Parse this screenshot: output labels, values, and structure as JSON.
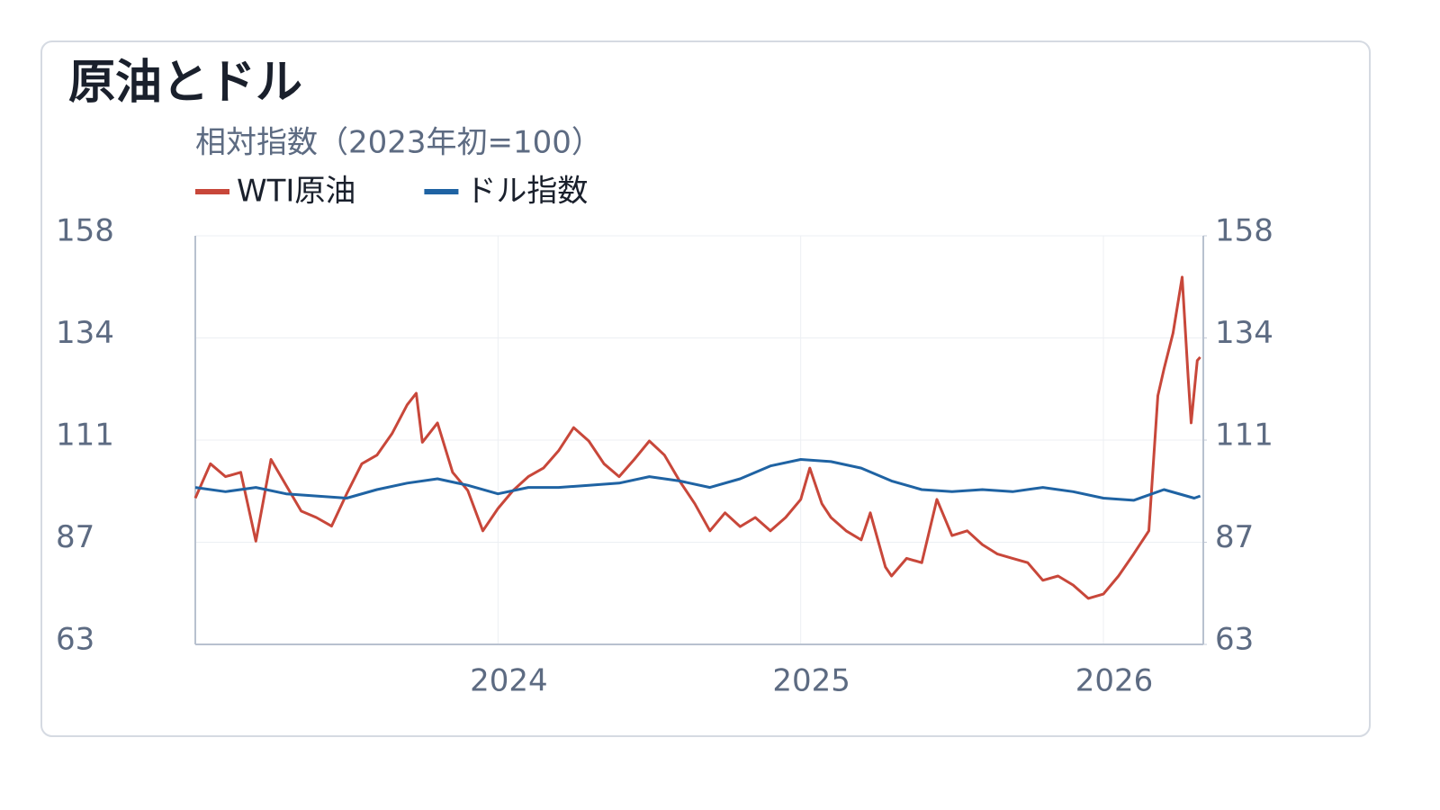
{
  "chart_data": {
    "type": "line",
    "title": "原油とドル",
    "subtitle": "相対指数（2023年初=100）",
    "xlim": [
      2023,
      2026.33
    ],
    "xticks": [
      2024,
      2025,
      2026
    ],
    "ylim": [
      63,
      158
    ],
    "yticks": [
      63,
      {
        "value": 86.75,
        "label": "87"
      },
      {
        "value": 110.5,
        "label": "111"
      },
      {
        "value": 134.25,
        "label": "134"
      },
      158
    ],
    "y2lim": [
      63,
      158
    ],
    "y2ticks": [
      63,
      {
        "value": 86.75,
        "label": "87"
      },
      {
        "value": 110.5,
        "label": "111"
      },
      {
        "value": 134.25,
        "label": "134"
      },
      158
    ],
    "grid": true,
    "series": [
      {
        "name": "WTI原油",
        "color": "#c8473a",
        "x": [
          2023.0,
          2023.05,
          2023.1,
          2023.15,
          2023.2,
          2023.25,
          2023.3,
          2023.35,
          2023.4,
          2023.45,
          2023.5,
          2023.55,
          2023.6,
          2023.65,
          2023.7,
          2023.73,
          2023.75,
          2023.8,
          2023.85,
          2023.9,
          2023.95,
          2024.0,
          2024.05,
          2024.1,
          2024.15,
          2024.2,
          2024.25,
          2024.3,
          2024.35,
          2024.4,
          2024.45,
          2024.5,
          2024.55,
          2024.6,
          2024.65,
          2024.7,
          2024.75,
          2024.8,
          2024.85,
          2024.9,
          2024.95,
          2025.0,
          2025.03,
          2025.07,
          2025.1,
          2025.15,
          2025.2,
          2025.23,
          2025.28,
          2025.3,
          2025.35,
          2025.4,
          2025.45,
          2025.5,
          2025.55,
          2025.6,
          2025.65,
          2025.7,
          2025.75,
          2025.8,
          2025.85,
          2025.9,
          2025.95,
          2026.0,
          2026.05,
          2026.1,
          2026.15,
          2026.18,
          2026.2,
          2026.23,
          2026.26,
          2026.28,
          2026.29,
          2026.31,
          2026.32
        ],
        "values": [
          97,
          105,
          102,
          103,
          87,
          106,
          100,
          94,
          92.5,
          90.5,
          98,
          105,
          107,
          112,
          118.7,
          121.4,
          110,
          114.5,
          103,
          98.8,
          89.4,
          94.6,
          98.8,
          102,
          104,
          108,
          113.4,
          110.3,
          105,
          102,
          106,
          110.3,
          107,
          101,
          95.7,
          89.4,
          93.6,
          90.4,
          92.5,
          89.4,
          92.5,
          96.7,
          104,
          95.7,
          92.5,
          89.4,
          87.3,
          93.6,
          81,
          78.9,
          83,
          82,
          96.7,
          88.3,
          89.4,
          86.2,
          84,
          83,
          82,
          77.9,
          78.9,
          76.8,
          73.7,
          74.7,
          78.9,
          84,
          89.4,
          120.8,
          127,
          135.4,
          148.4,
          125,
          114.5,
          129,
          129.8
        ]
      },
      {
        "name": "ドル指数",
        "color": "#1f63a3",
        "axis": "y2",
        "x": [
          2023.0,
          2023.1,
          2023.2,
          2023.3,
          2023.4,
          2023.5,
          2023.6,
          2023.7,
          2023.8,
          2023.9,
          2024.0,
          2024.1,
          2024.2,
          2024.3,
          2024.4,
          2024.5,
          2024.6,
          2024.7,
          2024.8,
          2024.9,
          2025.0,
          2025.1,
          2025.2,
          2025.3,
          2025.4,
          2025.5,
          2025.6,
          2025.7,
          2025.8,
          2025.9,
          2026.0,
          2026.1,
          2026.2,
          2026.3,
          2026.32
        ],
        "values": [
          99.5,
          98.5,
          99.5,
          98,
          97.5,
          97,
          99,
          100.5,
          101.5,
          100,
          98,
          99.5,
          99.5,
          100,
          100.5,
          102,
          101,
          99.5,
          101.5,
          104.5,
          106,
          105.5,
          104,
          101,
          99,
          98.5,
          99,
          98.5,
          99.5,
          98.5,
          97,
          96.5,
          99,
          97,
          97.5
        ]
      }
    ]
  }
}
